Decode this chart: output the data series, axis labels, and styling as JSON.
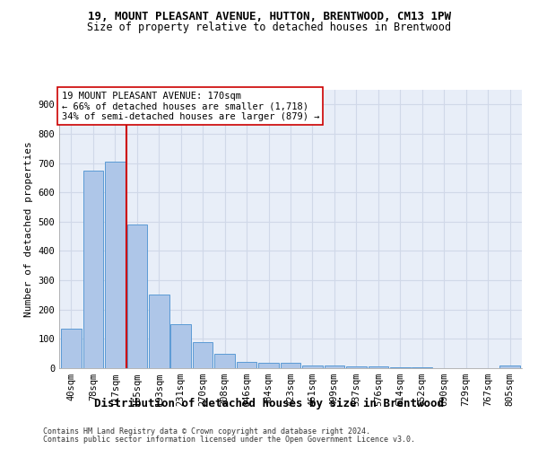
{
  "title1": "19, MOUNT PLEASANT AVENUE, HUTTON, BRENTWOOD, CM13 1PW",
  "title2": "Size of property relative to detached houses in Brentwood",
  "xlabel": "Distribution of detached houses by size in Brentwood",
  "ylabel": "Number of detached properties",
  "footnote1": "Contains HM Land Registry data © Crown copyright and database right 2024.",
  "footnote2": "Contains public sector information licensed under the Open Government Licence v3.0.",
  "bar_labels": [
    "40sqm",
    "78sqm",
    "117sqm",
    "155sqm",
    "193sqm",
    "231sqm",
    "270sqm",
    "308sqm",
    "346sqm",
    "384sqm",
    "423sqm",
    "461sqm",
    "499sqm",
    "537sqm",
    "576sqm",
    "614sqm",
    "652sqm",
    "690sqm",
    "729sqm",
    "767sqm",
    "805sqm"
  ],
  "bar_values": [
    135,
    675,
    705,
    490,
    250,
    150,
    88,
    50,
    22,
    18,
    18,
    10,
    8,
    5,
    5,
    2,
    2,
    1,
    1,
    0,
    8
  ],
  "bar_color": "#aec6e8",
  "bar_edge_color": "#5b9bd5",
  "annotation_text": "19 MOUNT PLEASANT AVENUE: 170sqm\n← 66% of detached houses are smaller (1,718)\n34% of semi-detached houses are larger (879) →",
  "vline_x": 2.5,
  "vline_color": "#cc0000",
  "annotation_box_color": "#ffffff",
  "annotation_box_edge": "#cc0000",
  "ylim": [
    0,
    950
  ],
  "yticks": [
    0,
    100,
    200,
    300,
    400,
    500,
    600,
    700,
    800,
    900
  ],
  "grid_color": "#d0d8e8",
  "background_color": "#e8eef8",
  "title_fontsize": 9,
  "subtitle_fontsize": 8.5,
  "xlabel_fontsize": 9,
  "ylabel_fontsize": 8,
  "tick_fontsize": 7.5,
  "annotation_fontsize": 7.5,
  "footnote_fontsize": 6
}
